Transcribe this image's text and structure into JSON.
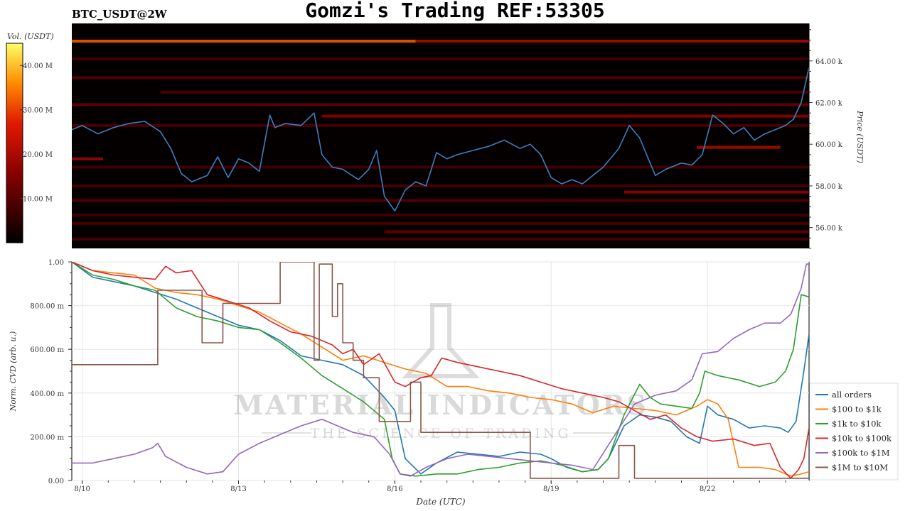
{
  "header": {
    "title": "Gomzi's Trading REF:53305",
    "pair": "BTC_USDT@2W"
  },
  "colors": {
    "heatmap_bg": "#050000",
    "price_line": "#3a7fc1",
    "series_colors": [
      "#1f77b4",
      "#ff7f0e",
      "#2ca02c",
      "#d62728",
      "#9467bd",
      "#8c564b"
    ]
  },
  "watermark": {
    "name": "MATERIAL INDICATORS",
    "tagline": "THE SCIENCE OF TRADING"
  },
  "chart_data": [
    {
      "type": "heatmap",
      "colorbar": {
        "label": "Vol. (USDT)",
        "ticks": [
          "10.00 M",
          "20.00 M",
          "30.00 M",
          "40.00 M"
        ],
        "tick_values": [
          10,
          20,
          30,
          40
        ],
        "range": [
          0,
          45
        ]
      },
      "ylabel": "Price (USDT)",
      "y_ticks": [
        "56.00 k",
        "58.00 k",
        "60.00 k",
        "62.00 k",
        "64.00 k"
      ],
      "y_tick_values": [
        56000,
        58000,
        60000,
        62000,
        64000
      ],
      "ylim": [
        55000,
        65800
      ],
      "xlim": [
        9.8,
        23.95
      ],
      "bands": [
        {
          "price": 64950,
          "from": 9.8,
          "to": 16.4,
          "vol": 32
        },
        {
          "price": 64950,
          "from": 16.4,
          "to": 23.95,
          "vol": 20
        },
        {
          "price": 64100,
          "from": 9.8,
          "to": 23.95,
          "vol": 8
        },
        {
          "price": 63200,
          "from": 9.8,
          "to": 23.95,
          "vol": 10
        },
        {
          "price": 62500,
          "from": 11.5,
          "to": 23.95,
          "vol": 9
        },
        {
          "price": 61900,
          "from": 9.8,
          "to": 23.95,
          "vol": 12
        },
        {
          "price": 61350,
          "from": 14.6,
          "to": 23.95,
          "vol": 16
        },
        {
          "price": 60900,
          "from": 9.8,
          "to": 23.95,
          "vol": 9
        },
        {
          "price": 59850,
          "from": 21.8,
          "to": 23.4,
          "vol": 20
        },
        {
          "price": 59300,
          "from": 9.8,
          "to": 10.4,
          "vol": 18
        },
        {
          "price": 58900,
          "from": 9.8,
          "to": 23.95,
          "vol": 8
        },
        {
          "price": 58000,
          "from": 9.8,
          "to": 23.95,
          "vol": 9
        },
        {
          "price": 57700,
          "from": 20.4,
          "to": 23.95,
          "vol": 16
        },
        {
          "price": 57300,
          "from": 9.8,
          "to": 23.95,
          "vol": 10
        },
        {
          "price": 56600,
          "from": 9.8,
          "to": 23.95,
          "vol": 8
        },
        {
          "price": 56200,
          "from": 9.8,
          "to": 23.95,
          "vol": 9
        },
        {
          "price": 55800,
          "from": 15.8,
          "to": 23.95,
          "vol": 12
        },
        {
          "price": 55450,
          "from": 9.8,
          "to": 23.95,
          "vol": 9
        }
      ],
      "price": {
        "x": [
          9.8,
          10.0,
          10.3,
          10.6,
          10.9,
          11.2,
          11.5,
          11.7,
          11.9,
          12.1,
          12.4,
          12.6,
          12.8,
          13.0,
          13.2,
          13.4,
          13.6,
          13.7,
          13.9,
          14.2,
          14.45,
          14.6,
          14.8,
          15.0,
          15.3,
          15.5,
          15.65,
          15.8,
          16.0,
          16.2,
          16.4,
          16.6,
          16.8,
          17.0,
          17.2,
          17.5,
          17.8,
          18.1,
          18.4,
          18.6,
          18.8,
          19.0,
          19.2,
          19.4,
          19.6,
          19.8,
          20.0,
          20.3,
          20.5,
          20.7,
          20.85,
          21.0,
          21.2,
          21.5,
          21.7,
          21.9,
          22.1,
          22.3,
          22.5,
          22.7,
          22.9,
          23.1,
          23.3,
          23.5,
          23.65,
          23.8,
          23.95
        ],
        "y": [
          60700,
          60900,
          60500,
          60800,
          61000,
          61100,
          60600,
          59800,
          58600,
          58200,
          58500,
          59400,
          58400,
          59300,
          59100,
          58700,
          61400,
          60800,
          61000,
          60900,
          61500,
          59500,
          58900,
          58800,
          58300,
          58800,
          59700,
          57500,
          56800,
          57800,
          58200,
          58000,
          59600,
          59300,
          59500,
          59700,
          59900,
          60200,
          59800,
          60000,
          59500,
          58400,
          58100,
          58300,
          58100,
          58500,
          58900,
          59800,
          60900,
          60300,
          59400,
          58500,
          58800,
          59100,
          59000,
          59500,
          61400,
          61000,
          60500,
          60800,
          60200,
          60500,
          60700,
          60900,
          61200,
          62000,
          63700
        ]
      }
    },
    {
      "type": "line",
      "xlabel": "Date (UTC)",
      "ylabel": "Norm. CVD (arb. u.)",
      "x_ticks": [
        "8/10",
        "8/13",
        "8/16",
        "8/19",
        "8/22"
      ],
      "x_tick_values": [
        10,
        13,
        16,
        19,
        22
      ],
      "y_ticks": [
        "0.00",
        "200.00 m",
        "400.00 m",
        "600.00 m",
        "800.00 m",
        "1.00"
      ],
      "y_tick_values": [
        0,
        0.2,
        0.4,
        0.6,
        0.8,
        1.0
      ],
      "xlim": [
        9.8,
        23.95
      ],
      "ylim": [
        0,
        1.0
      ],
      "grid": true,
      "legend_position": "right",
      "series": [
        {
          "name": "all orders",
          "x": [
            9.8,
            10.2,
            10.6,
            11.0,
            11.4,
            11.8,
            12.2,
            12.6,
            13.0,
            13.4,
            13.8,
            14.2,
            14.6,
            15.0,
            15.4,
            15.8,
            16.0,
            16.2,
            16.5,
            16.8,
            17.2,
            17.6,
            18.0,
            18.4,
            18.8,
            19.0,
            19.3,
            19.6,
            19.9,
            20.1,
            20.4,
            20.7,
            21.0,
            21.3,
            21.6,
            21.85,
            22.0,
            22.2,
            22.5,
            22.8,
            23.1,
            23.4,
            23.55,
            23.7,
            23.85,
            23.95
          ],
          "y": [
            1.0,
            0.93,
            0.91,
            0.89,
            0.86,
            0.83,
            0.79,
            0.75,
            0.71,
            0.69,
            0.64,
            0.57,
            0.55,
            0.53,
            0.48,
            0.38,
            0.32,
            0.1,
            0.03,
            0.08,
            0.13,
            0.12,
            0.11,
            0.13,
            0.12,
            0.1,
            0.06,
            0.04,
            0.05,
            0.1,
            0.25,
            0.3,
            0.29,
            0.27,
            0.2,
            0.17,
            0.34,
            0.3,
            0.28,
            0.24,
            0.25,
            0.24,
            0.22,
            0.27,
            0.5,
            0.67
          ]
        },
        {
          "name": "$100 to $1k",
          "x": [
            9.8,
            10.2,
            10.6,
            11.0,
            11.4,
            11.8,
            12.2,
            12.6,
            13.0,
            13.4,
            13.8,
            14.2,
            14.6,
            15.0,
            15.4,
            15.8,
            16.2,
            16.6,
            17.0,
            17.4,
            17.8,
            18.2,
            18.6,
            19.0,
            19.4,
            19.8,
            20.2,
            20.6,
            21.0,
            21.4,
            21.8,
            22.0,
            22.2,
            22.4,
            22.6,
            23.0,
            23.3,
            23.6,
            23.8,
            23.95
          ],
          "y": [
            1.0,
            0.96,
            0.95,
            0.94,
            0.88,
            0.86,
            0.85,
            0.83,
            0.8,
            0.77,
            0.72,
            0.67,
            0.61,
            0.55,
            0.57,
            0.54,
            0.51,
            0.49,
            0.43,
            0.43,
            0.41,
            0.4,
            0.38,
            0.37,
            0.35,
            0.31,
            0.34,
            0.33,
            0.32,
            0.3,
            0.34,
            0.37,
            0.35,
            0.28,
            0.06,
            0.06,
            0.05,
            0.02,
            0.03,
            0.04
          ]
        },
        {
          "name": "$1k to $10k",
          "x": [
            9.8,
            10.2,
            10.6,
            11.0,
            11.4,
            11.8,
            12.2,
            12.6,
            13.0,
            13.4,
            13.8,
            14.2,
            14.6,
            15.0,
            15.4,
            15.8,
            15.95,
            16.1,
            16.4,
            16.8,
            17.2,
            17.6,
            18.0,
            18.4,
            18.8,
            19.2,
            19.6,
            19.9,
            20.1,
            20.4,
            20.7,
            20.9,
            21.1,
            21.4,
            21.7,
            21.85,
            21.95,
            22.2,
            22.6,
            23.0,
            23.3,
            23.5,
            23.65,
            23.8,
            23.95
          ],
          "y": [
            1.0,
            0.94,
            0.92,
            0.89,
            0.87,
            0.79,
            0.75,
            0.73,
            0.7,
            0.69,
            0.63,
            0.56,
            0.48,
            0.42,
            0.36,
            0.28,
            0.1,
            0.03,
            0.02,
            0.03,
            0.03,
            0.05,
            0.06,
            0.08,
            0.09,
            0.07,
            0.04,
            0.05,
            0.1,
            0.3,
            0.44,
            0.38,
            0.35,
            0.34,
            0.33,
            0.4,
            0.5,
            0.48,
            0.46,
            0.43,
            0.45,
            0.5,
            0.6,
            0.85,
            0.84
          ]
        },
        {
          "name": "$10k to $100k",
          "x": [
            9.8,
            10.2,
            10.6,
            11.0,
            11.4,
            11.6,
            11.8,
            12.1,
            12.4,
            12.8,
            13.2,
            13.6,
            14.0,
            14.4,
            14.8,
            15.0,
            15.2,
            15.4,
            15.7,
            16.0,
            16.2,
            16.5,
            16.7,
            16.9,
            17.2,
            17.6,
            18.0,
            18.4,
            18.8,
            19.2,
            19.6,
            20.0,
            20.3,
            20.6,
            20.9,
            21.2,
            21.5,
            21.8,
            22.1,
            22.5,
            22.9,
            23.2,
            23.4,
            23.6,
            23.75,
            23.85,
            23.95
          ],
          "y": [
            1.0,
            0.96,
            0.94,
            0.93,
            0.92,
            0.98,
            0.95,
            0.96,
            0.85,
            0.82,
            0.79,
            0.73,
            0.68,
            0.66,
            0.62,
            0.58,
            0.6,
            0.53,
            0.58,
            0.45,
            0.43,
            0.47,
            0.48,
            0.56,
            0.54,
            0.52,
            0.5,
            0.48,
            0.45,
            0.42,
            0.4,
            0.38,
            0.36,
            0.32,
            0.28,
            0.3,
            0.24,
            0.2,
            0.18,
            0.19,
            0.16,
            0.17,
            0.06,
            0.01,
            0.05,
            0.1,
            0.24
          ]
        },
        {
          "name": "$100k to $1M",
          "x": [
            9.8,
            10.2,
            10.6,
            11.0,
            11.35,
            11.45,
            11.6,
            12.0,
            12.4,
            12.7,
            13.0,
            13.4,
            13.8,
            14.2,
            14.6,
            14.9,
            15.2,
            15.6,
            15.9,
            16.1,
            16.3,
            16.6,
            17.0,
            17.4,
            17.8,
            18.2,
            18.6,
            19.0,
            19.4,
            19.8,
            20.2,
            20.6,
            21.0,
            21.4,
            21.7,
            21.9,
            22.2,
            22.5,
            22.8,
            23.1,
            23.4,
            23.6,
            23.8,
            23.9,
            23.95
          ],
          "y": [
            0.08,
            0.08,
            0.1,
            0.12,
            0.15,
            0.17,
            0.11,
            0.06,
            0.03,
            0.04,
            0.12,
            0.17,
            0.21,
            0.25,
            0.28,
            0.25,
            0.22,
            0.2,
            0.12,
            0.03,
            0.02,
            0.06,
            0.1,
            0.12,
            0.11,
            0.1,
            0.09,
            0.08,
            0.07,
            0.05,
            0.2,
            0.35,
            0.39,
            0.41,
            0.46,
            0.58,
            0.59,
            0.65,
            0.69,
            0.72,
            0.72,
            0.76,
            0.88,
            0.99,
            0.99
          ]
        },
        {
          "name": "$1M to $10M",
          "step": true,
          "x": [
            9.8,
            11.35,
            11.45,
            12.3,
            12.6,
            12.7,
            13.8,
            14.45,
            14.55,
            14.8,
            14.9,
            15.0,
            15.2,
            15.4,
            15.7,
            16.3,
            16.5,
            18.6,
            19.0,
            20.3,
            20.6,
            23.95
          ],
          "y": [
            0.53,
            0.53,
            0.87,
            0.63,
            0.63,
            0.81,
            1.0,
            0.55,
            0.99,
            0.75,
            0.9,
            0.63,
            0.55,
            0.47,
            0.27,
            0.45,
            0.22,
            0.01,
            0.01,
            0.16,
            0.01,
            0.01
          ]
        }
      ]
    }
  ]
}
